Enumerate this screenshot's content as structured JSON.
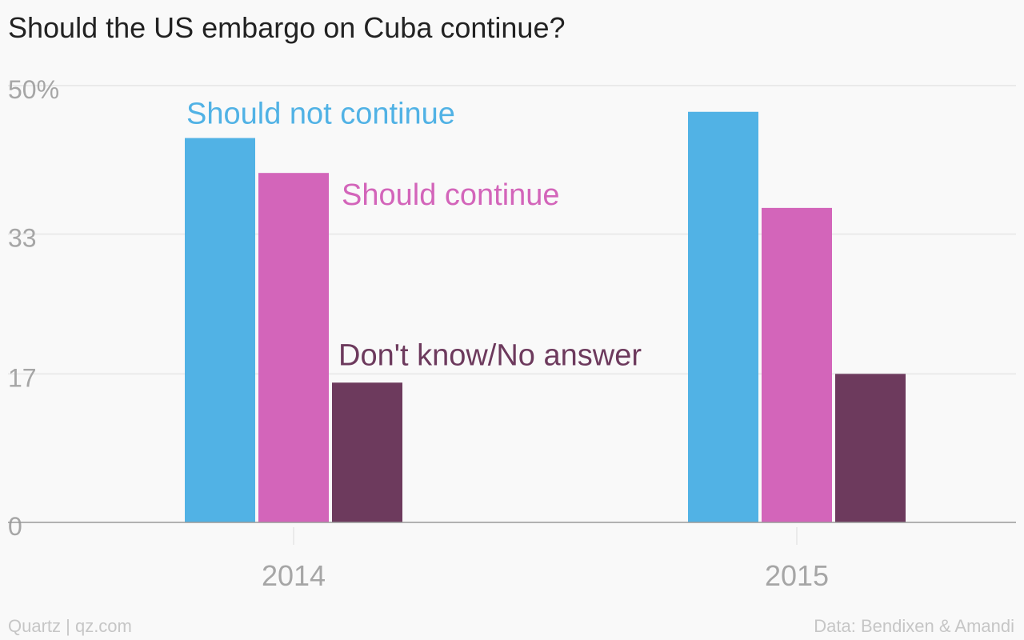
{
  "title": "Should the US embargo on Cuba continue?",
  "footer": {
    "brand": "Quartz | qz.com",
    "source": "Data: Bendixen & Amandi"
  },
  "colors": {
    "should_not_continue": "#51b2e5",
    "should_continue": "#d365ba",
    "dont_know": "#6d3a5d",
    "grid": "#e6e6e6",
    "axis": "#999999",
    "tick_text": "#a6a6a6",
    "background": "#f9f9f9"
  },
  "chart_data": {
    "type": "bar",
    "categories": [
      "2014",
      "2015"
    ],
    "series": [
      {
        "name": "Should not continue",
        "values": [
          44,
          47
        ]
      },
      {
        "name": "Should continue",
        "values": [
          40,
          36
        ]
      },
      {
        "name": "Don't know/No answer",
        "values": [
          16,
          17
        ]
      }
    ],
    "yticks": [
      0,
      17,
      33,
      50
    ],
    "ytick_labels": [
      "0",
      "17",
      "33",
      "50%"
    ],
    "ylim": [
      0,
      50
    ],
    "grid": true,
    "legend": "inline labels next to 2014 bars"
  }
}
